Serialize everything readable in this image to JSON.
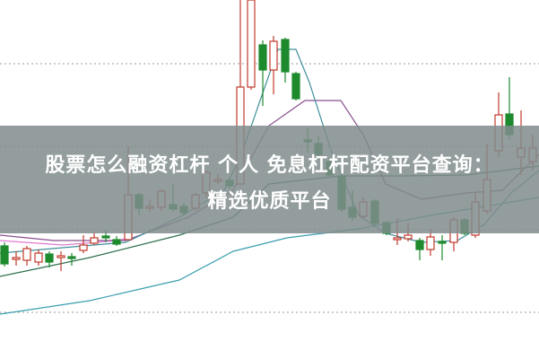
{
  "article": {
    "title_line1": "股票怎么融资杠杆 个人 免息杠杆配资平台查询：",
    "title_line2": "精选优质平台"
  },
  "chart": {
    "type": "candlestick",
    "colors": {
      "up": "#c0392b",
      "down": "#1e8a2e",
      "ma_fast": "#3f8f9a",
      "ma_mid": "#8a4f8f",
      "ma_long": "#2f6f4f",
      "ma_slow": "#3a9fb0",
      "ma_pink": "#e07ad0",
      "grid": "#999999",
      "banner": "#808c8c"
    }
  }
}
